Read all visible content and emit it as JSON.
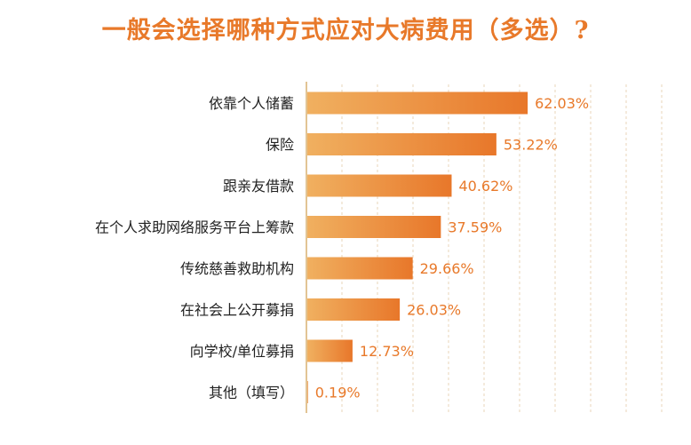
{
  "chart_data": {
    "type": "bar",
    "orientation": "horizontal",
    "title": "一般会选择哪种方式应对大病费用（多选）?",
    "categories": [
      "依靠个人储蓄",
      "保险",
      "跟亲友借款",
      "在个人求助网络服务平台上筹款",
      "传统慈善救助机构",
      "在社会上公开募捐",
      "向学校/单位募捐",
      "其他（填写）"
    ],
    "values": [
      62.03,
      53.22,
      40.62,
      37.59,
      29.66,
      26.03,
      12.73,
      0.19
    ],
    "value_labels": [
      "62.03%",
      "53.22%",
      "40.62%",
      "37.59%",
      "29.66%",
      "26.03%",
      "12.73%",
      "0.19%"
    ],
    "xlim": [
      0,
      100
    ],
    "unit": "%",
    "grid": "vertical dashed",
    "colors": {
      "bar_start": "#f0b060",
      "bar_end": "#e8772a",
      "axis": "#d9b070",
      "grid": "#ead4b8",
      "label": "#222222",
      "value": "#e8792a",
      "title": "#e8792a"
    }
  }
}
